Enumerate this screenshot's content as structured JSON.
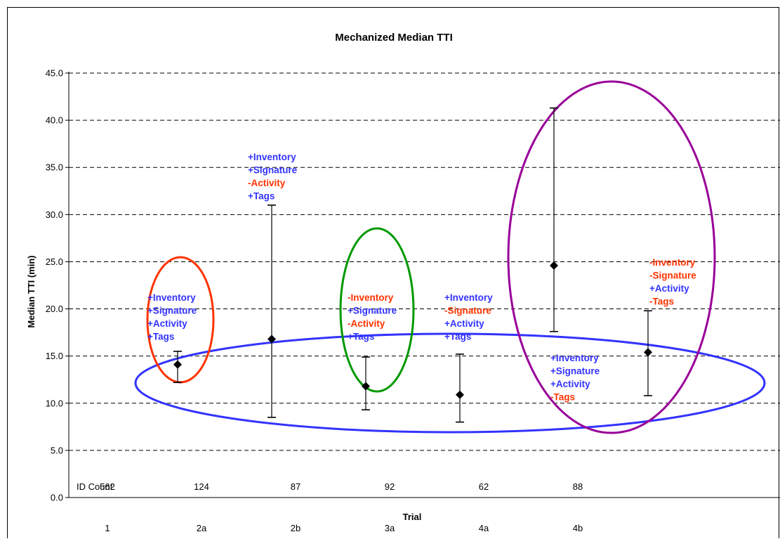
{
  "chart_data": {
    "type": "scatter",
    "title": "Mechanized Median TTI",
    "xlabel": "Trial",
    "ylabel": "Median TTI (min)",
    "ylim": [
      0,
      45
    ],
    "y_ticks": [
      "0.0",
      "5.0",
      "10.0",
      "15.0",
      "20.0",
      "25.0",
      "30.0",
      "35.0",
      "40.0",
      "45.0"
    ],
    "grid": "horizontal dashed",
    "categories": [
      "1",
      "2a",
      "2b",
      "3a",
      "4a",
      "4b"
    ],
    "points": [
      {
        "trial": "1",
        "median": 14.1,
        "low": 12.2,
        "high": 15.5,
        "id_count": "562"
      },
      {
        "trial": "2a",
        "median": 16.8,
        "low": 8.5,
        "high": 31.0,
        "id_count": "124"
      },
      {
        "trial": "2b",
        "median": 11.8,
        "low": 9.3,
        "high": 14.9,
        "id_count": "87"
      },
      {
        "trial": "3a",
        "median": 10.9,
        "low": 8.0,
        "high": 15.2,
        "id_count": "92"
      },
      {
        "trial": "4a",
        "median": 24.6,
        "low": 17.6,
        "high": 41.3,
        "id_count": "62"
      },
      {
        "trial": "4b",
        "median": 15.4,
        "low": 10.8,
        "high": 19.8,
        "id_count": "88"
      }
    ],
    "id_count_label": "ID Count",
    "annotations": [
      {
        "trial": "1",
        "lines": [
          {
            "text": "+Inventory",
            "color": "#3333ff"
          },
          {
            "text": "+Signature",
            "color": "#3333ff"
          },
          {
            "text": "+Activity",
            "color": "#3333ff"
          },
          {
            "text": "+Tags",
            "color": "#3333ff"
          }
        ]
      },
      {
        "trial": "2a",
        "lines": [
          {
            "text": "+Inventory",
            "color": "#3333ff"
          },
          {
            "text": "+Signature",
            "color": "#3333ff"
          },
          {
            "text": "-Activity",
            "color": "#ff3300"
          },
          {
            "text": "+Tags",
            "color": "#3333ff"
          }
        ]
      },
      {
        "trial": "2b",
        "lines": [
          {
            "text": "-Inventory",
            "color": "#ff3300"
          },
          {
            "text": "+Signature",
            "color": "#3333ff"
          },
          {
            "text": "-Activity",
            "color": "#ff3300"
          },
          {
            "text": "+Tags",
            "color": "#3333ff"
          }
        ]
      },
      {
        "trial": "3a",
        "lines": [
          {
            "text": "+Inventory",
            "color": "#3333ff"
          },
          {
            "text": "-Signature",
            "color": "#ff3300"
          },
          {
            "text": "+Activity",
            "color": "#3333ff"
          },
          {
            "text": "+Tags",
            "color": "#3333ff"
          }
        ]
      },
      {
        "trial": "4a",
        "lines": [
          {
            "text": "+Inventory",
            "color": "#3333ff"
          },
          {
            "text": "+Signature",
            "color": "#3333ff"
          },
          {
            "text": "+Activity",
            "color": "#3333ff"
          },
          {
            "text": "-Tags",
            "color": "#ff3300"
          }
        ]
      },
      {
        "trial": "4b",
        "lines": [
          {
            "text": "-Inventory",
            "color": "#ff3300"
          },
          {
            "text": "-Signature",
            "color": "#ff3300"
          },
          {
            "text": "+Activity",
            "color": "#3333ff"
          },
          {
            "text": "-Tags",
            "color": "#ff3300"
          }
        ]
      }
    ],
    "highlight_colors": {
      "trial_1": "#ff3300",
      "trial_2b": "#009900",
      "trial_4a": "#990099",
      "low_group": "#3333ff"
    }
  }
}
